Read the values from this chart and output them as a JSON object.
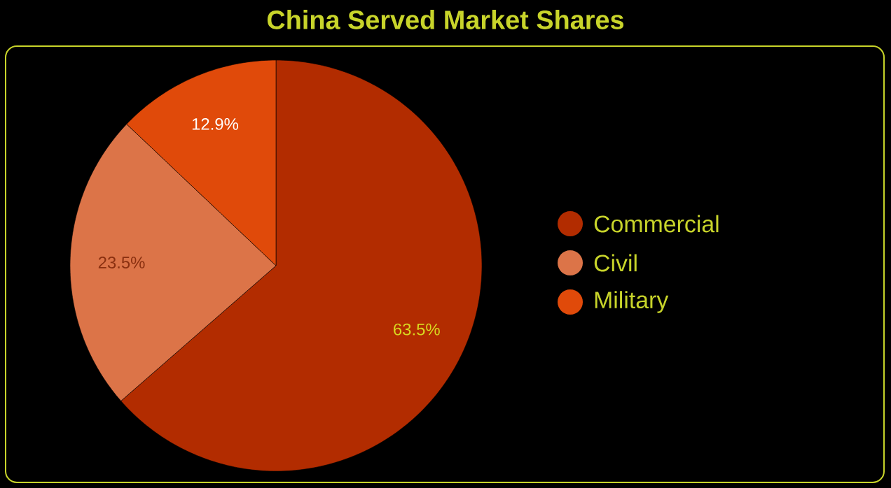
{
  "chart_data": {
    "type": "pie",
    "title": "China Served Market Shares",
    "categories": [
      "Commercial",
      "Civil",
      "Military"
    ],
    "values": [
      63.5,
      23.5,
      12.9
    ],
    "colors": [
      "#b22c00",
      "#dc7448",
      "#e04a0a"
    ],
    "value_labels": [
      "63.5%",
      "23.5%",
      "12.9%"
    ],
    "legend": "right"
  }
}
